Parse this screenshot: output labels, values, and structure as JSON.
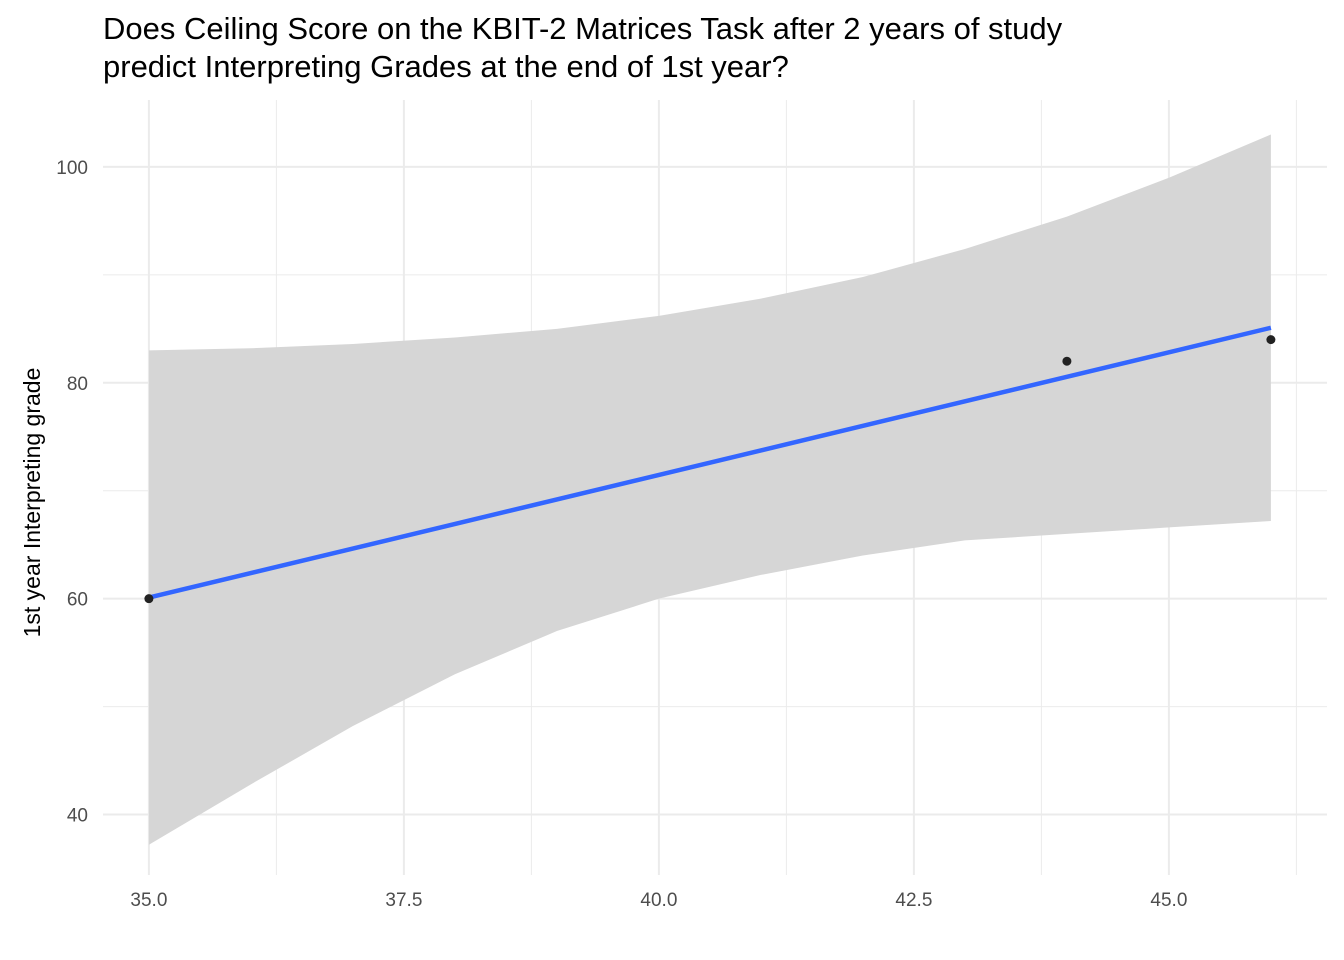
{
  "chart_data": {
    "type": "scatter",
    "title_lines": [
      "Does Ceiling Score on the KBIT-2 Matrices Task after 2 years of study",
      "predict Interpreting Grades at the end of 1st year?"
    ],
    "xlabel": "",
    "ylabel": "1st year Interpreting grade",
    "xlim": [
      34.55,
      46.55
    ],
    "ylim": [
      34.4,
      106.2
    ],
    "x_ticks": [
      35.0,
      37.5,
      40.0,
      42.5,
      45.0
    ],
    "x_tick_labels": [
      "35.0",
      "37.5",
      "40.0",
      "42.5",
      "45.0"
    ],
    "y_ticks": [
      40,
      60,
      80,
      100
    ],
    "y_tick_labels": [
      "40",
      "60",
      "80",
      "100"
    ],
    "grid": true,
    "points": [
      {
        "x": 35,
        "y": 60
      },
      {
        "x": 44,
        "y": 82
      },
      {
        "x": 46,
        "y": 84
      }
    ],
    "fit_line": {
      "x": [
        35,
        46
      ],
      "y": [
        60.1,
        85.1
      ],
      "color": "#3366ff"
    },
    "confidence_band": {
      "x": [
        35,
        36,
        37,
        38,
        39,
        40,
        41,
        42,
        43,
        44,
        45,
        46
      ],
      "upper": [
        83.0,
        83.2,
        83.6,
        84.2,
        85.0,
        86.2,
        87.8,
        89.8,
        92.4,
        95.4,
        99.0,
        103.0
      ],
      "lower": [
        37.2,
        42.8,
        48.2,
        53.0,
        57.0,
        60.0,
        62.2,
        64.0,
        65.4,
        66.0,
        66.6,
        67.2
      ],
      "color": "#d6d6d6"
    },
    "colors": {
      "point": "#222222",
      "grid": "#ebebeb",
      "band": "#d6d6d6",
      "line": "#3366ff"
    }
  }
}
